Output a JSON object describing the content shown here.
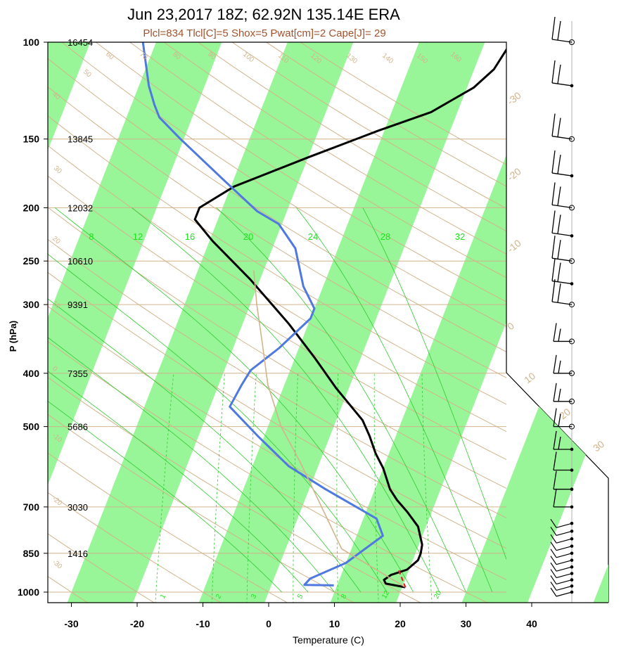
{
  "title": "Jun 23,2017 18Z; 62.92N 135.14E ERA",
  "subtitle": "Plcl=834 Tlcl[C]=5 Shox=5 Pwat[cm]=2 Cape[J]= 29",
  "colors": {
    "band": "#98f598",
    "temperature": "#000000",
    "dewpoint": "#4f79de",
    "parcel": "#d2b48c",
    "dry_adiabat": "#d2b48c",
    "moist_adiabat": "#2ecc2e",
    "mixing_ratio": "#2ecc2e",
    "mixing_ratio_label": "#19e619",
    "isotherm_label": "#d2b48c",
    "subtitle": "#a0522d",
    "lcl_marker": "#e02020"
  },
  "chart_data": {
    "type": "skew-t log-p",
    "xlabel": "Temperature (C)",
    "ylabel": "P (hPa)",
    "xlim": [
      -33,
      52
    ],
    "ylim": [
      1050,
      100
    ],
    "x_ticks": [
      -30,
      -20,
      -10,
      0,
      10,
      20,
      30,
      40
    ],
    "pressure_ticks": [
      1000,
      850,
      700,
      500,
      400,
      300,
      250,
      200,
      150,
      100
    ],
    "heights": [
      {
        "p": 100,
        "label": "16454"
      },
      {
        "p": 150,
        "label": "13845"
      },
      {
        "p": 200,
        "label": "12032"
      },
      {
        "p": 250,
        "label": "10610"
      },
      {
        "p": 300,
        "label": "9391"
      },
      {
        "p": 400,
        "label": "7355"
      },
      {
        "p": 500,
        "label": "5686"
      },
      {
        "p": 700,
        "label": "3030"
      },
      {
        "p": 850,
        "label": "1416"
      }
    ],
    "skewed_isotherm_labels": [
      "-30",
      "-20",
      "-10",
      "0",
      "10",
      "20",
      "30"
    ],
    "dry_adiabat_labels": [
      "-30",
      "-20",
      "-10",
      "0",
      "10",
      "20",
      "30",
      "40",
      "50",
      "60",
      "70",
      "80",
      "90",
      "100",
      "110",
      "120",
      "130",
      "140",
      "150",
      "160"
    ],
    "mixing_ratio_labels_top": [
      "8",
      "12",
      "16",
      "20",
      "24",
      "28",
      "32"
    ],
    "mixing_ratio_labels_bottom": [
      "1",
      "2",
      "3",
      "5",
      "8",
      "12",
      "20"
    ],
    "series": [
      {
        "key": "temperature",
        "points": [
          [
            20.5,
            980
          ],
          [
            17.3,
            965
          ],
          [
            16.8,
            950
          ],
          [
            17.6,
            930
          ],
          [
            19.7,
            910
          ],
          [
            20.8,
            875
          ],
          [
            20.8,
            850
          ],
          [
            20.5,
            820
          ],
          [
            18.8,
            760
          ],
          [
            16.3,
            715
          ],
          [
            14.0,
            680
          ],
          [
            12.3,
            650
          ],
          [
            10.0,
            595
          ],
          [
            8.0,
            560
          ],
          [
            6.0,
            520
          ],
          [
            4.0,
            487
          ],
          [
            -2.0,
            425
          ],
          [
            -7.0,
            375
          ],
          [
            -13.0,
            325
          ],
          [
            -21.5,
            270
          ],
          [
            -29.5,
            230
          ],
          [
            -33.5,
            210
          ],
          [
            -33.5,
            200
          ],
          [
            -29.5,
            183
          ],
          [
            -20.0,
            162
          ],
          [
            -11.0,
            145
          ],
          [
            -4.0,
            134
          ],
          [
            1.0,
            121
          ],
          [
            3.0,
            112
          ],
          [
            4.0,
            100
          ]
        ]
      },
      {
        "key": "dewpoint",
        "points": [
          [
            9.5,
            972
          ],
          [
            5.0,
            970
          ],
          [
            5.5,
            945
          ],
          [
            10.0,
            885
          ],
          [
            11.5,
            848
          ],
          [
            14.0,
            790
          ],
          [
            12.0,
            735
          ],
          [
            2.5,
            650
          ],
          [
            -4.5,
            590
          ],
          [
            -11.0,
            520
          ],
          [
            -17.0,
            460
          ],
          [
            -16.5,
            420
          ],
          [
            -16.0,
            395
          ],
          [
            -13.0,
            360
          ],
          [
            -10.0,
            318
          ],
          [
            -10.0,
            305
          ],
          [
            -13.0,
            278
          ],
          [
            -16.5,
            237
          ],
          [
            -20.5,
            214
          ],
          [
            -24.5,
            203
          ],
          [
            -31.5,
            178
          ],
          [
            -40.5,
            150
          ],
          [
            -45.0,
            137
          ],
          [
            -46.5,
            130
          ],
          [
            -48.5,
            120
          ],
          [
            -52.0,
            100
          ]
        ]
      },
      {
        "key": "parcel",
        "points": [
          [
            20.5,
            980
          ],
          [
            8.5,
            834
          ],
          [
            -3.0,
            580
          ],
          [
            -8.0,
            500
          ],
          [
            -12.5,
            420
          ],
          [
            -16.0,
            350
          ],
          [
            -19.0,
            300
          ],
          [
            -21.5,
            260
          ]
        ]
      }
    ],
    "lcl_marker_points": [
      [
        18.5,
        913
      ],
      [
        20.5,
        980
      ]
    ],
    "wind_barb_levels_hpa": [
      100,
      120,
      150,
      175,
      200,
      225,
      250,
      275,
      300,
      350,
      400,
      450,
      500,
      550,
      600,
      650,
      700,
      750,
      775,
      800,
      825,
      850,
      875,
      900,
      925,
      950,
      975,
      1000
    ]
  }
}
